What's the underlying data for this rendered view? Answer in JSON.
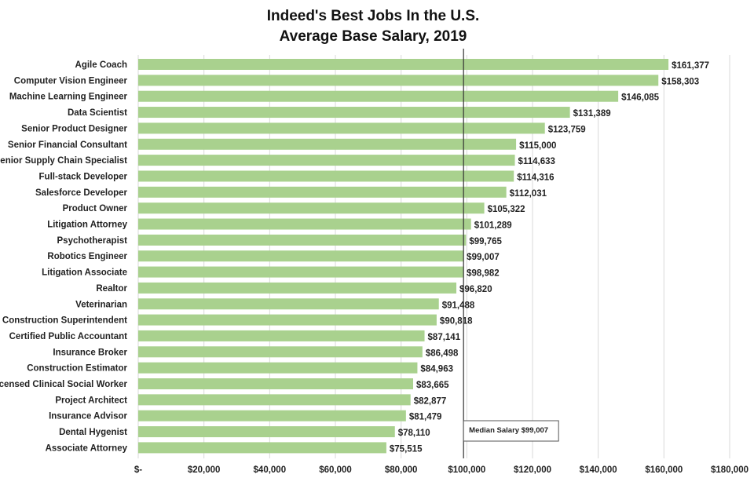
{
  "chart_data": {
    "type": "bar",
    "orientation": "horizontal",
    "title": [
      "Indeed's Best Jobs In the U.S.",
      "Average Base Salary, 2019"
    ],
    "categories": [
      "Agile Coach",
      "Computer Vision Engineer",
      "Machine Learning Engineer",
      "Data Scientist",
      "Senior Product Designer",
      "Senior Financial Consultant",
      "Senior Supply Chain Specialist",
      "Full-stack Developer",
      "Salesforce Developer",
      "Product Owner",
      "Litigation Attorney",
      "Psychotherapist",
      "Robotics Engineer",
      "Litigation Associate",
      "Realtor",
      "Veterinarian",
      "Construction Superintendent",
      "Certified Public Accountant",
      "Insurance Broker",
      "Construction Estimator",
      "Licensed Clinical Social Worker",
      "Project Architect",
      "Insurance Advisor",
      "Dental Hygenist",
      "Associate Attorney"
    ],
    "values": [
      161377,
      158303,
      146085,
      131389,
      123759,
      115000,
      114633,
      114316,
      112031,
      105322,
      101289,
      99765,
      99007,
      98982,
      96820,
      91488,
      90818,
      87141,
      86498,
      84963,
      83665,
      82877,
      81479,
      78110,
      75515
    ],
    "value_labels": [
      "$161,377",
      "$158,303",
      "$146,085",
      "$131,389",
      "$123,759",
      "$115,000",
      "$114,633",
      "$114,316",
      "$112,031",
      "$105,322",
      "$101,289",
      "$99,765",
      "$99,007",
      "$98,982",
      "$96,820",
      "$91,488",
      "$90,818",
      "$87,141",
      "$86,498",
      "$84,963",
      "$83,665",
      "$82,877",
      "$81,479",
      "$78,110",
      "$75,515"
    ],
    "xlim": [
      0,
      180000
    ],
    "x_ticks": [
      0,
      20000,
      40000,
      60000,
      80000,
      100000,
      120000,
      140000,
      160000,
      180000
    ],
    "x_tick_labels": [
      "$-",
      "$20,000",
      "$40,000",
      "$60,000",
      "$80,000",
      "$100,000",
      "$120,000",
      "$140,000",
      "$160,000",
      "$180,000"
    ],
    "grid": "vertical",
    "xlabel": "",
    "ylabel": "",
    "median": {
      "value": 99007,
      "label": "Median Salary $99,007"
    },
    "colors": {
      "bar": "#a9d18e",
      "grid": "#d9d9d9",
      "median_line": "#333333",
      "text": "#222222"
    }
  }
}
